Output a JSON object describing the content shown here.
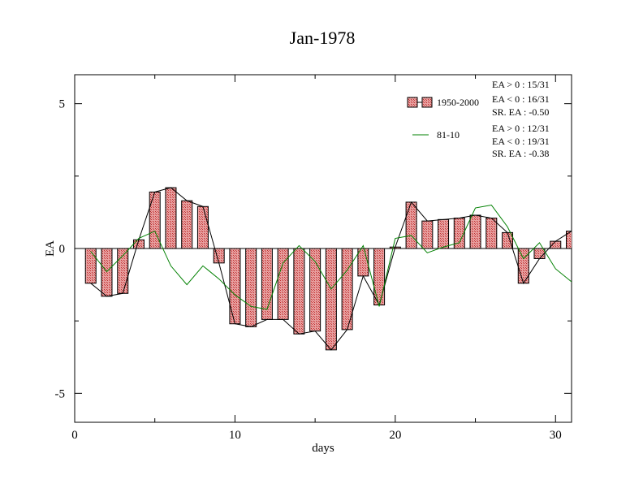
{
  "chart_data": {
    "type": "bar",
    "title": "Jan-1978",
    "xlabel": "days",
    "ylabel": "EA",
    "xlim": [
      0,
      31
    ],
    "ylim": [
      -6,
      6
    ],
    "x_ticks": [
      0,
      10,
      20,
      30
    ],
    "y_ticks": [
      -5,
      0,
      5
    ],
    "grid": false,
    "legend_position": "top-right",
    "colors": {
      "bar_fill": "#e8a0a0",
      "bar_hatch": "#c03030",
      "bar_edge": "#000000",
      "line_black": "#000000",
      "line_green": "#008000"
    },
    "days": [
      1,
      2,
      3,
      4,
      5,
      6,
      7,
      8,
      9,
      10,
      11,
      12,
      13,
      14,
      15,
      16,
      17,
      18,
      19,
      20,
      21,
      22,
      23,
      24,
      25,
      26,
      27,
      28,
      29,
      30,
      31
    ],
    "series": [
      {
        "name": "1950-2000",
        "values": [
          -1.2,
          -1.65,
          -1.55,
          0.3,
          1.95,
          2.1,
          1.65,
          1.45,
          -0.5,
          -2.6,
          -2.7,
          -2.45,
          -2.45,
          -2.95,
          -2.85,
          -3.5,
          -2.8,
          -0.95,
          -1.95,
          0.05,
          1.6,
          0.95,
          1.0,
          1.05,
          1.15,
          1.05,
          0.55,
          -1.2,
          -0.35,
          0.25,
          0.6
        ]
      },
      {
        "name": "81-10",
        "values": [
          -0.1,
          -0.8,
          -0.25,
          0.35,
          0.6,
          -0.6,
          -1.25,
          -0.6,
          -1.05,
          -1.6,
          -2.0,
          -2.1,
          -0.5,
          0.1,
          -0.45,
          -1.4,
          -0.75,
          0.1,
          -2.0,
          0.35,
          0.45,
          -0.15,
          0.05,
          0.2,
          1.4,
          1.5,
          0.75,
          -0.35,
          0.2,
          -0.7,
          -1.15
        ]
      }
    ],
    "legend": {
      "bars_label": "1950-2000",
      "line_label": "81-10",
      "stats_1": [
        "EA > 0 : 15/31",
        "EA < 0 : 16/31",
        "SR. EA : -0.50"
      ],
      "stats_2": [
        "EA > 0 : 12/31",
        "EA < 0 : 19/31",
        "SR. EA : -0.38"
      ]
    }
  }
}
